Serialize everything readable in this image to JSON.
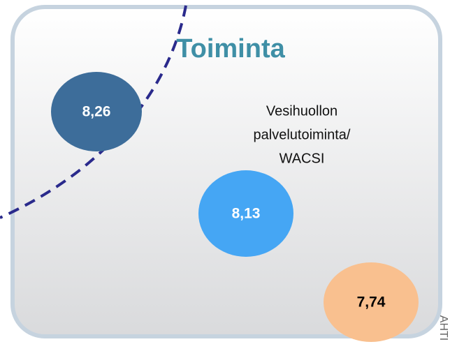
{
  "title": "Toiminta",
  "label": {
    "lines": [
      "Vesihuollon",
      "palvelutoiminta/",
      "WACSI"
    ]
  },
  "circles": [
    {
      "label": "8,26"
    },
    {
      "label": "8,13"
    },
    {
      "label": "7,74"
    }
  ],
  "side_text": "AHTI"
}
